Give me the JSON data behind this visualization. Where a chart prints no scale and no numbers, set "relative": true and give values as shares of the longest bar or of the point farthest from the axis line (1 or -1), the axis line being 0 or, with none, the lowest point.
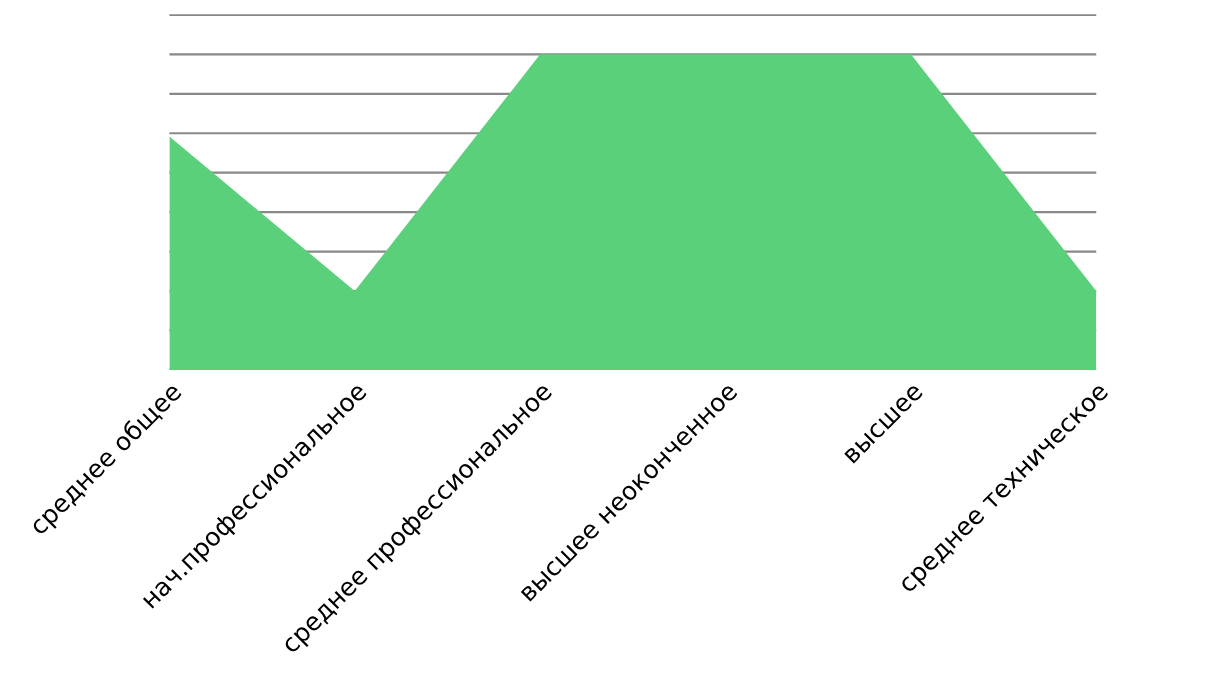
{
  "chart_data": {
    "type": "area",
    "relative": true,
    "grid": "y",
    "categories": [
      "среднее общее",
      "нач.профессиональное",
      "среднее профессиональное",
      "высшее неоконченное",
      "высшее",
      "среднее техническое"
    ],
    "series": [
      {
        "color": "#5ad07a",
        "values": [
          0.74,
          0.25,
          1,
          1,
          1,
          0.25
        ]
      }
    ]
  }
}
